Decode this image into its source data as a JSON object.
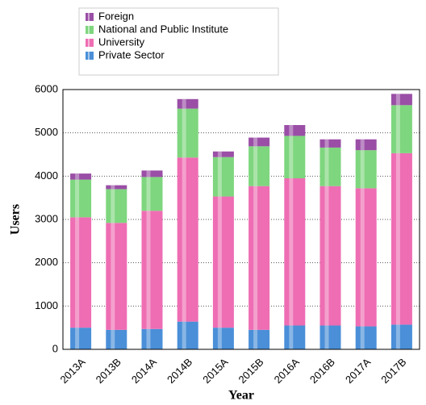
{
  "chart_data": {
    "type": "stacked_bar",
    "x_label": "Year",
    "y_label": "Users",
    "categories": [
      "2013A",
      "2013B",
      "2014A",
      "2014B",
      "2015A",
      "2015B",
      "2016A",
      "2016B",
      "2017A",
      "2017B"
    ],
    "series": [
      {
        "name": "Private Sector",
        "color": "#4a8fd8",
        "values": [
          500,
          450,
          470,
          640,
          500,
          450,
          550,
          550,
          530,
          570
        ]
      },
      {
        "name": "University",
        "color": "#ee6db3",
        "values": [
          2550,
          2470,
          2730,
          3790,
          3030,
          3320,
          3400,
          3220,
          3190,
          3960
        ]
      },
      {
        "name": "National and Public Institute",
        "color": "#7ed67e",
        "values": [
          870,
          780,
          780,
          1130,
          910,
          920,
          980,
          890,
          880,
          1110
        ]
      },
      {
        "name": "Foreign",
        "color": "#9a4ea6",
        "values": [
          140,
          90,
          150,
          220,
          130,
          200,
          250,
          190,
          250,
          260
        ]
      }
    ],
    "ylim": [
      0,
      6000
    ],
    "yticks": [
      0,
      1000,
      2000,
      3000,
      4000,
      5000,
      6000
    ],
    "grid": true
  }
}
